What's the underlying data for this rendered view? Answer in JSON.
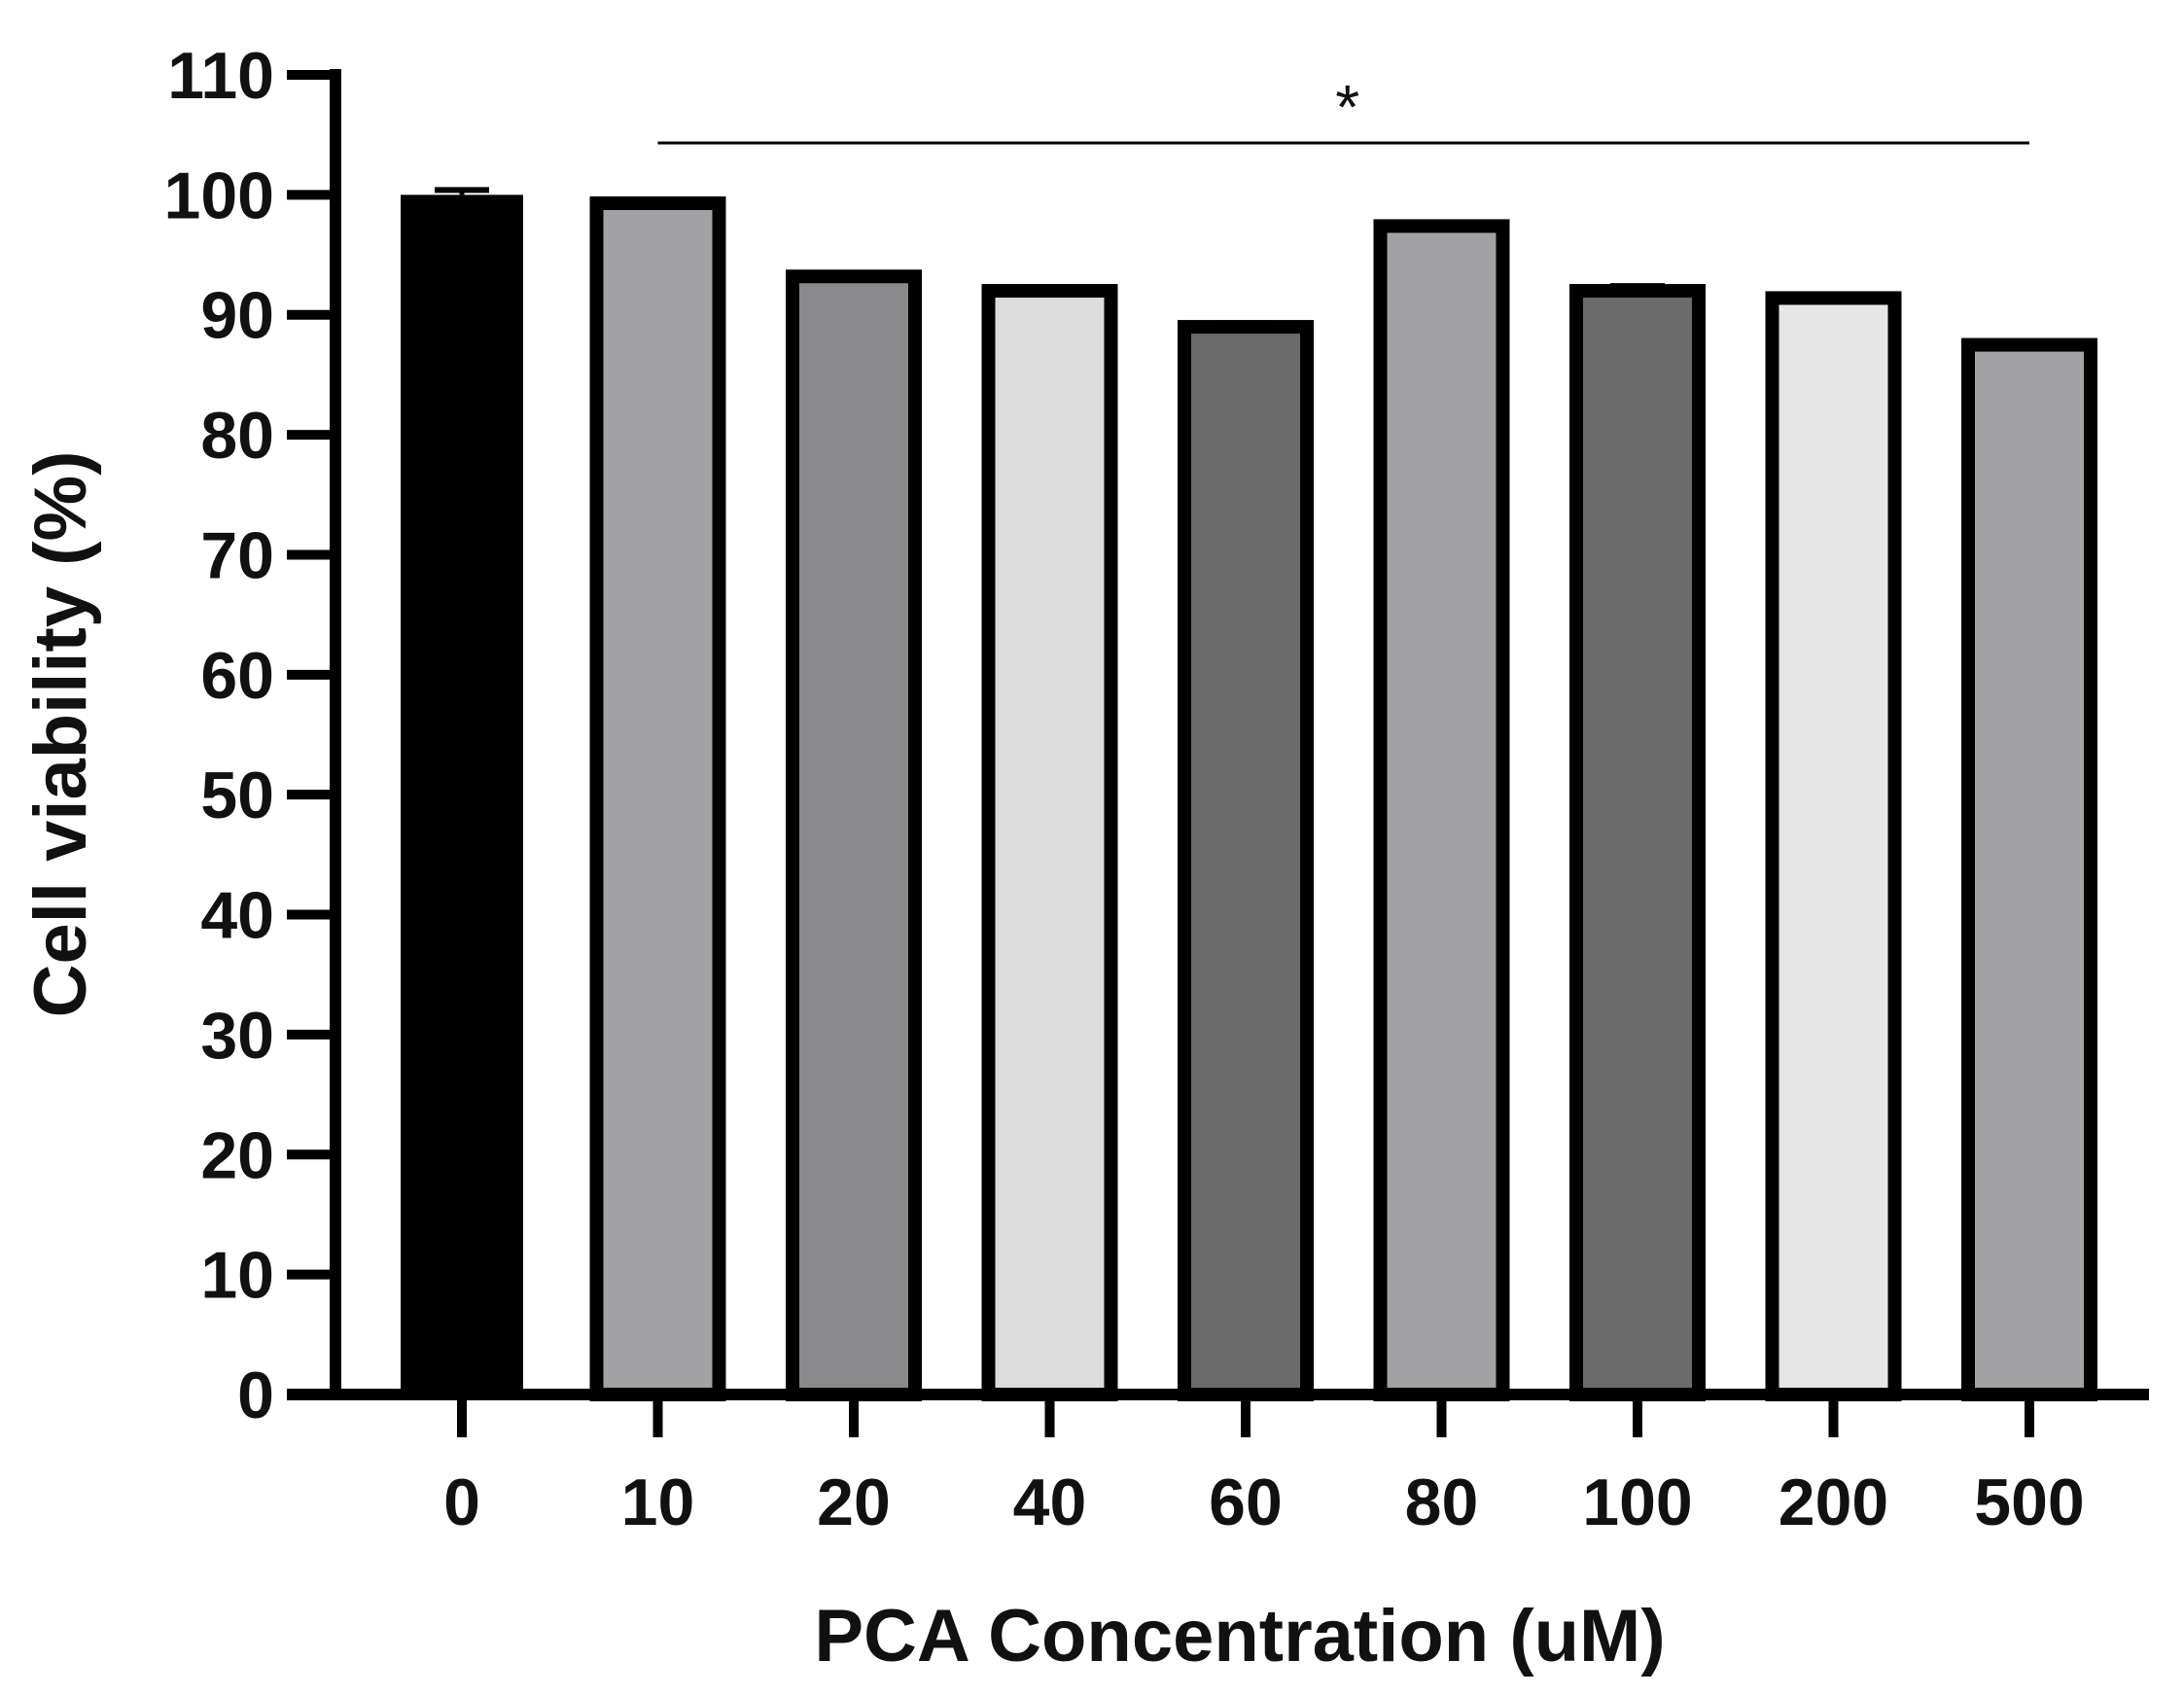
{
  "chart_data": {
    "type": "bar",
    "title": "",
    "xlabel": "PCA Concentration (uM)",
    "ylabel": "Cell viability (%)",
    "categories": [
      "0",
      "10",
      "20",
      "40",
      "60",
      "80",
      "100",
      "200",
      "500"
    ],
    "values": [
      100.0,
      99.3,
      93.2,
      92.0,
      89.0,
      97.4,
      92.0,
      91.4,
      87.5
    ],
    "error": [
      0.4,
      0.3,
      0.3,
      0.3,
      0.3,
      0.2,
      0.4,
      0.3,
      0.3
    ],
    "fills": [
      "#000000",
      "#a2a1a4",
      "#8a898b",
      "#dcdcdc",
      "#6b6b6b",
      "#a2a1a4",
      "#6b6b6b",
      "#e6e6e6",
      "#a2a1a4"
    ],
    "ylim": [
      0,
      110
    ],
    "yticks": [
      0,
      10,
      20,
      30,
      40,
      50,
      60,
      70,
      80,
      90,
      100,
      110
    ],
    "significance": {
      "label": "*",
      "from_category": "10",
      "to_category": "500"
    },
    "grid": false,
    "legend": "none"
  }
}
